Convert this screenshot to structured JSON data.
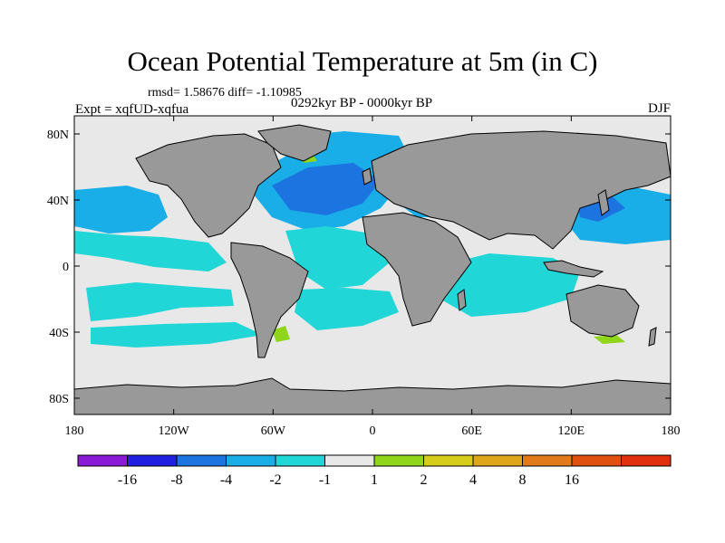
{
  "title": "Ocean Potential Temperature at 5m (in C)",
  "stats": "rmsd= 1.58676 diff= -1.10985",
  "period": "0292kyr BP - 0000kyr BP",
  "experiment": "Expt = xqfUD-xqfua",
  "season": "DJF",
  "colors": {
    "ocean_neutral": "#e8e8e8",
    "land": "#999999",
    "coast": "#000000",
    "anomaly_minus1_to_minus2": "#21d6d6",
    "anomaly_minus2_to_minus4": "#1aaee8",
    "anomaly_minus4_to_minus8": "#1c74e0",
    "anomaly_plus1_to_plus2": "#8fd61a"
  },
  "x_ticks": [
    "180",
    "120W",
    "60W",
    "0",
    "60E",
    "120E",
    "180"
  ],
  "y_ticks": [
    "80N",
    "40N",
    "0",
    "40S",
    "80S"
  ],
  "colorbar": {
    "boxes": [
      "#8a1ad6",
      "#2020e0",
      "#1c74e0",
      "#1aaee8",
      "#21d6d6",
      "#e8e8e8",
      "#8fd61a",
      "#d6cc1a",
      "#e0a61a",
      "#e07a1a",
      "#e0500e",
      "#e0300e"
    ],
    "labels": [
      "-16",
      "-8",
      "-4",
      "-2",
      "-1",
      "1",
      "2",
      "4",
      "8",
      "16"
    ]
  }
}
